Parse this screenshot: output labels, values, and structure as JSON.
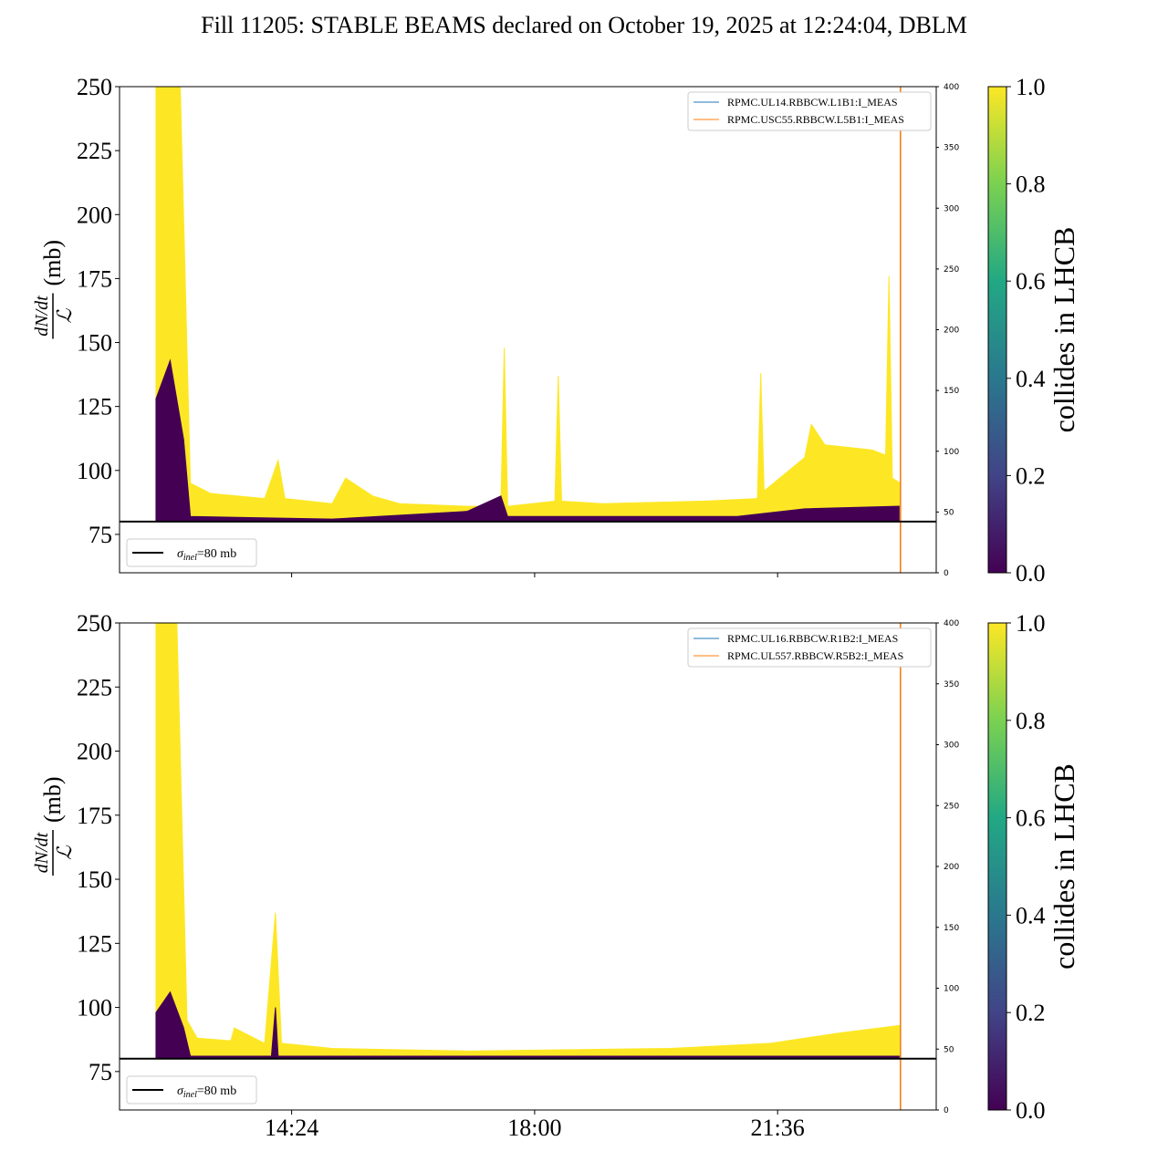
{
  "title": "Fill 11205: STABLE BEAMS declared on October 19, 2025 at 12:24:04, DBLM",
  "chart_data": [
    {
      "type": "area",
      "ylabel": {
        "numerator": "dN/dt",
        "denominator": "ℒ",
        "unit": "(mb)"
      },
      "xlim": [
        11.85,
        23.95
      ],
      "xticks": [
        {
          "value": 14.4,
          "label": "14:24"
        },
        {
          "value": 18,
          "label": "18:00"
        },
        {
          "value": 21.6,
          "label": "21:36"
        }
      ],
      "show_xtick_labels": false,
      "ylim": [
        60,
        250
      ],
      "yticks": [
        75,
        100,
        125,
        150,
        175,
        200,
        225,
        250
      ],
      "y2lim": [
        0,
        400
      ],
      "y2ticks": [
        0,
        50,
        100,
        150,
        200,
        250,
        300,
        350,
        400
      ],
      "series": [
        {
          "name": "collides 1",
          "color": "#fde725",
          "x": [
            12.39,
            12.75,
            12.9,
            13.2,
            14.0,
            14.2,
            14.3,
            15.0,
            15.2,
            15.6,
            16.0,
            17.0,
            17.5,
            17.55,
            17.6,
            18.3,
            18.35,
            18.4,
            19.0,
            20.5,
            21.3,
            21.35,
            21.4,
            22.0,
            22.1,
            22.3,
            23.0,
            23.2,
            23.25,
            23.3,
            23.42
          ],
          "values": [
            250,
            250,
            95,
            91,
            89,
            104,
            89,
            87,
            97,
            90,
            87,
            86,
            86,
            148,
            86,
            88,
            137,
            88,
            87,
            88,
            89,
            138,
            92,
            105,
            118,
            110,
            108,
            106,
            176,
            97,
            95
          ]
        },
        {
          "name": "collides 0",
          "color": "#440154",
          "x": [
            12.39,
            12.6,
            12.8,
            12.9,
            15.0,
            17.0,
            17.5,
            17.6,
            21.0,
            22.0,
            23.4
          ],
          "values": [
            128,
            143,
            112,
            82,
            81,
            84,
            90,
            82,
            82,
            85,
            86
          ]
        }
      ],
      "currents": [
        {
          "name": "RPMC.UL14.RBBCW.L1B1:I_MEAS",
          "color": "#1f77b4",
          "axis": "y2",
          "x": [
            23.42,
            23.42
          ],
          "values": [
            0,
            400
          ]
        },
        {
          "name": "RPMC.USC55.RBBCW.L5B1:I_MEAS",
          "color": "#ff7f0e",
          "axis": "y2",
          "x": [
            23.42,
            23.42
          ],
          "values": [
            0,
            400
          ]
        }
      ],
      "hline": {
        "value": 80,
        "symbol": "σ",
        "subscript": "inel",
        "label": "=80 mb"
      },
      "colorbar": {
        "label": "collides in LHCB",
        "lim": [
          0,
          1
        ],
        "ticks": [
          {
            "value": 0,
            "label": "0.0"
          },
          {
            "value": 0.2,
            "label": "0.2"
          },
          {
            "value": 0.4,
            "label": "0.4"
          },
          {
            "value": 0.6,
            "label": "0.6"
          },
          {
            "value": 0.8,
            "label": "0.8"
          },
          {
            "value": 1,
            "label": "1.0"
          }
        ]
      }
    },
    {
      "type": "area",
      "ylabel": {
        "numerator": "dN/dt",
        "denominator": "ℒ",
        "unit": "(mb)"
      },
      "xlim": [
        11.85,
        23.95
      ],
      "xticks": [
        {
          "value": 14.4,
          "label": "14:24"
        },
        {
          "value": 18,
          "label": "18:00"
        },
        {
          "value": 21.6,
          "label": "21:36"
        }
      ],
      "show_xtick_labels": true,
      "ylim": [
        60,
        250
      ],
      "yticks": [
        75,
        100,
        125,
        150,
        175,
        200,
        225,
        250
      ],
      "y2lim": [
        0,
        400
      ],
      "y2ticks": [
        0,
        50,
        100,
        150,
        200,
        250,
        300,
        350,
        400
      ],
      "series": [
        {
          "name": "collides 1",
          "color": "#fde725",
          "x": [
            12.39,
            12.7,
            12.85,
            13.0,
            13.5,
            13.55,
            14.0,
            14.16,
            14.25,
            15.0,
            17.0,
            20.0,
            21.5,
            22.5,
            23.42
          ],
          "values": [
            250,
            250,
            95,
            88,
            87,
            92,
            86,
            137,
            86,
            84,
            83,
            84,
            86,
            90,
            93
          ]
        },
        {
          "name": "collides 0",
          "color": "#440154",
          "x": [
            12.39,
            12.6,
            12.8,
            12.9,
            14.1,
            14.16,
            14.2,
            23.4
          ],
          "values": [
            98,
            106,
            92,
            81,
            81,
            100,
            81,
            81
          ]
        }
      ],
      "currents": [
        {
          "name": "RPMC.UL16.RBBCW.R1B2:I_MEAS",
          "color": "#1f77b4",
          "axis": "y2",
          "x": [
            23.42,
            23.42
          ],
          "values": [
            0,
            400
          ]
        },
        {
          "name": "RPMC.UL557.RBBCW.R5B2:I_MEAS",
          "color": "#ff7f0e",
          "axis": "y2",
          "x": [
            23.42,
            23.42
          ],
          "values": [
            0,
            400
          ]
        }
      ],
      "hline": {
        "value": 80,
        "symbol": "σ",
        "subscript": "inel",
        "label": "=80 mb"
      },
      "colorbar": {
        "label": "collides in LHCB",
        "lim": [
          0,
          1
        ],
        "ticks": [
          {
            "value": 0,
            "label": "0.0"
          },
          {
            "value": 0.2,
            "label": "0.2"
          },
          {
            "value": 0.4,
            "label": "0.4"
          },
          {
            "value": 0.6,
            "label": "0.6"
          },
          {
            "value": 0.8,
            "label": "0.8"
          },
          {
            "value": 1,
            "label": "1.0"
          }
        ]
      }
    }
  ]
}
